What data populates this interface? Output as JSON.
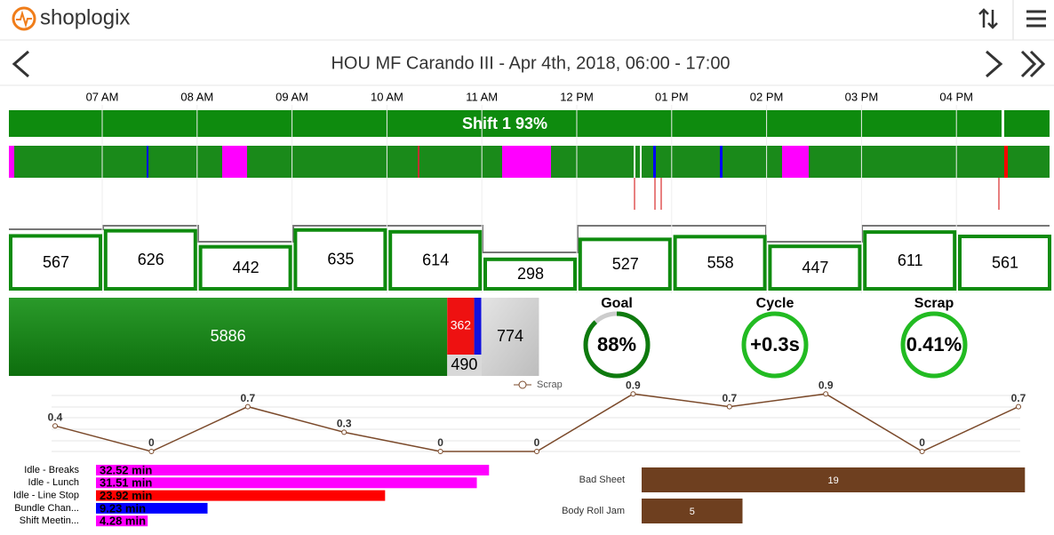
{
  "header": {
    "brand": "shoplogix"
  },
  "nav": {
    "title": "HOU MF Carando III - Apr 4th, 2018, 06:00 - 17:00"
  },
  "timeline": {
    "hours": [
      "07 AM",
      "08 AM",
      "09 AM",
      "10 AM",
      "11 AM",
      "12 PM",
      "01 PM",
      "02 PM",
      "03 PM",
      "04 PM"
    ],
    "shift": "Shift 1 93%"
  },
  "hourly_counts": [
    567,
    626,
    442,
    635,
    614,
    298,
    527,
    558,
    447,
    611,
    561
  ],
  "summary": {
    "good": 5886,
    "rejected": 362,
    "scrap": 490,
    "remaining": 774
  },
  "gauges": [
    {
      "label": "Goal",
      "value": 88,
      "value_label": "88%"
    },
    {
      "label": "Cycle",
      "value_label": "+0.3s"
    },
    {
      "label": "Scrap",
      "value_label": "0.41%"
    }
  ],
  "scrap_chart": {
    "type": "line",
    "series": [
      {
        "name": "Scrap",
        "color": "#7b4a2b",
        "values": [
          0.4,
          0,
          0.7,
          0.3,
          0,
          0,
          0.9,
          0.7,
          0.9,
          0,
          0.7
        ]
      }
    ]
  },
  "downtime_chart": {
    "type": "bar",
    "categories": [
      "Idle - Breaks",
      "Idle - Lunch",
      "Idle - Line Stop",
      "Bundle Chan...",
      "Shift Meetin..."
    ],
    "values": [
      32.52,
      31.51,
      23.92,
      9.23,
      4.28
    ],
    "value_labels": [
      "32.52 min",
      "31.51 min",
      "23.92 min",
      "9.23 min",
      "4.28 min"
    ],
    "colors": [
      "#ff00ff",
      "#ff00ff",
      "#ff0000",
      "#0000ff",
      "#ff00ff"
    ]
  },
  "reject_chart": {
    "type": "bar",
    "categories": [
      "Bad Sheet",
      "Body Roll Jam"
    ],
    "values": [
      19,
      5
    ],
    "color": "#6e3f1f"
  }
}
